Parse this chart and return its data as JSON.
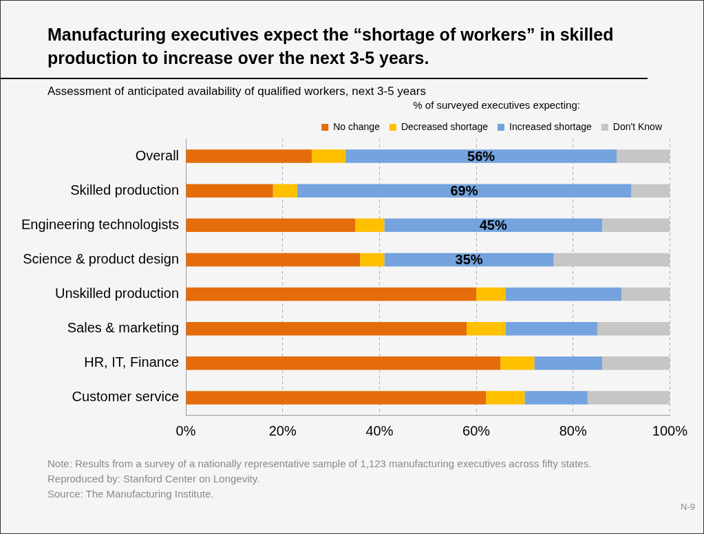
{
  "chart_data": {
    "type": "bar",
    "orientation": "horizontal",
    "stacked": true,
    "title": "Manufacturing executives expect the “shortage of workers” in skilled production to increase over the next 3-5 years.",
    "subtitle": "Assessment of anticipated availability of qualified workers, next 3-5 years",
    "legend_title": "% of surveyed executives expecting:",
    "categories": [
      "Overall",
      "Skilled production",
      "Engineering technologists",
      "Science & product design",
      "Unskilled production",
      "Sales & marketing",
      "HR, IT, Finance",
      "Customer service"
    ],
    "series": [
      {
        "name": "No change",
        "color": "#e46c0a",
        "values": [
          26,
          18,
          35,
          36,
          60,
          58,
          65,
          62
        ]
      },
      {
        "name": "Decreased shortage",
        "color": "#ffc000",
        "values": [
          7,
          5,
          6,
          5,
          6,
          8,
          7,
          8
        ]
      },
      {
        "name": "Increased shortage",
        "color": "#74a3dd",
        "values": [
          56,
          69,
          45,
          35,
          24,
          19,
          14,
          13
        ],
        "value_labels": [
          "56%",
          "69%",
          "45%",
          "35%",
          null,
          null,
          null,
          null
        ]
      },
      {
        "name": "Don't Know",
        "color": "#c6c6c6",
        "values": [
          11,
          8,
          14,
          24,
          10,
          15,
          14,
          17
        ]
      }
    ],
    "xlim": [
      0,
      100
    ],
    "xticks": [
      {
        "value": 0,
        "label": "0%"
      },
      {
        "value": 20,
        "label": "20%"
      },
      {
        "value": 40,
        "label": "40%"
      },
      {
        "value": 60,
        "label": "60%"
      },
      {
        "value": 80,
        "label": "80%"
      },
      {
        "value": 100,
        "label": "100%"
      }
    ],
    "grid": "x",
    "legend": "top right",
    "annotations": [
      "Note: Results from a survey of a nationally representative sample of 1,123 manufacturing executives across fifty states.",
      "Reproduced by: Stanford Center on Longevity.",
      "Source: The Manufacturing Institute.",
      "N-9"
    ]
  }
}
